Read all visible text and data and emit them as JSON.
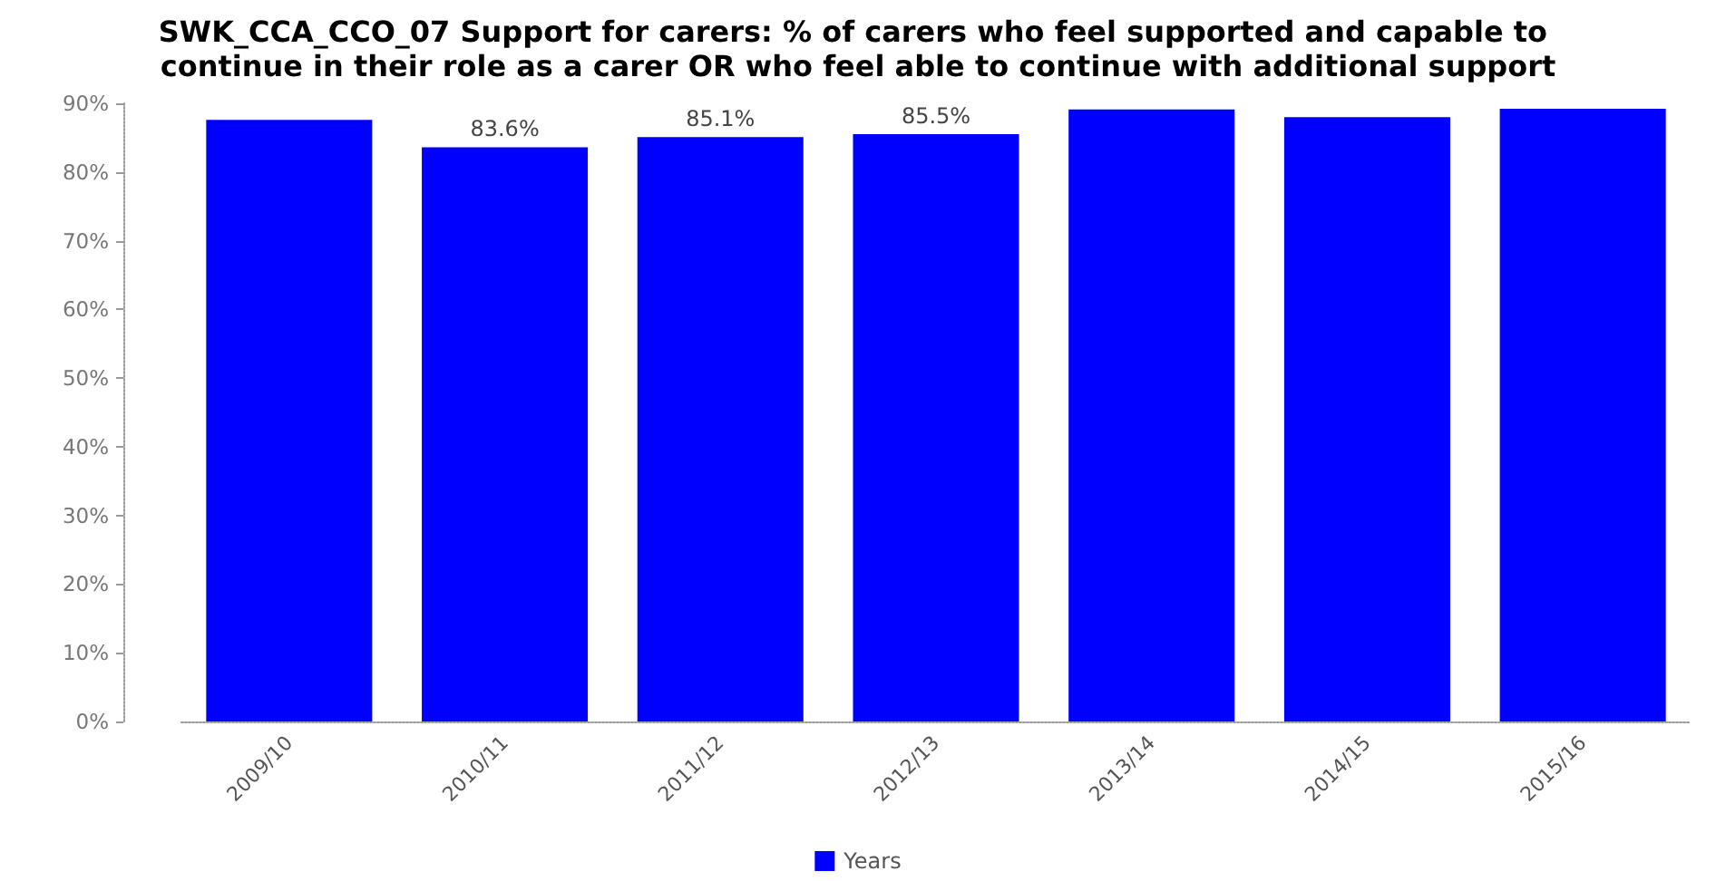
{
  "chart_data": {
    "type": "bar",
    "title": "SWK_CCA_CCO_07 Support for carers: % of carers who feel supported and capable to continue in their role as a carer OR who feel able to continue with additional support",
    "categories": [
      "2009/10",
      "2010/11",
      "2011/12",
      "2012/13",
      "2013/14",
      "2014/15",
      "2015/16"
    ],
    "series": [
      {
        "name": "Years",
        "color": "#0000ff",
        "values": [
          87.6,
          83.6,
          85.1,
          85.5,
          89.1,
          88.0,
          89.2
        ],
        "value_labels": [
          null,
          "83.6%",
          "85.1%",
          "85.5%",
          null,
          null,
          null
        ]
      }
    ],
    "ylim": [
      0,
      90
    ],
    "yticks": [
      {
        "value": 0,
        "label": "0%"
      },
      {
        "value": 10,
        "label": "10%"
      },
      {
        "value": 20,
        "label": "20%"
      },
      {
        "value": 30,
        "label": "30%"
      },
      {
        "value": 40,
        "label": "40%"
      },
      {
        "value": 50,
        "label": "50%"
      },
      {
        "value": 60,
        "label": "60%"
      },
      {
        "value": 70,
        "label": "70%"
      },
      {
        "value": 80,
        "label": "80%"
      },
      {
        "value": 90,
        "label": "90%"
      }
    ],
    "grid": false,
    "legend": "bottom"
  }
}
